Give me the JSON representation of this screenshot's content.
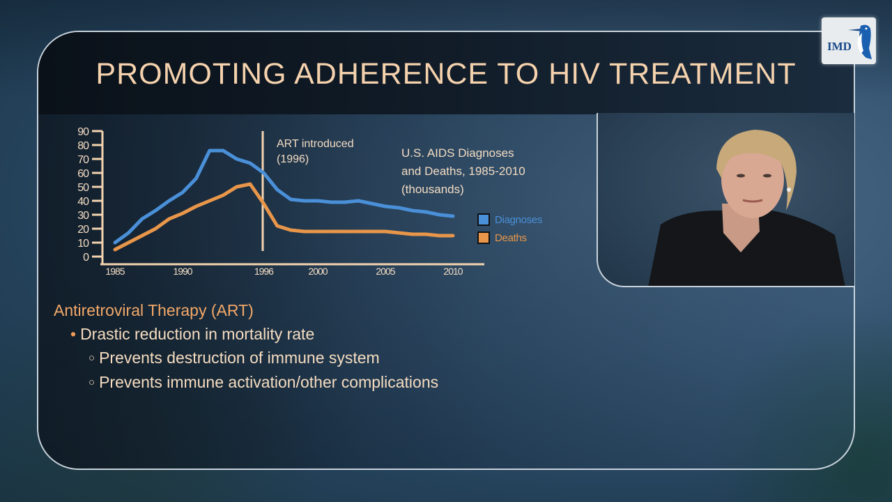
{
  "slide": {
    "title": "PROMOTING ADHERENCE TO HIV TREATMENT",
    "logo_text": "IMD",
    "logo_icon": "kingfisher-bird-icon"
  },
  "chart": {
    "title": "U.S. AIDS Diagnoses\nand Deaths, 1985-2010\n(thousands)",
    "annotation": "ART introduced\n(1996)",
    "legend": [
      {
        "label": "Diagnoses",
        "color": "#4a90d9"
      },
      {
        "label": "Deaths",
        "color": "#e8964a"
      }
    ]
  },
  "bullets": {
    "heading": "Antiretroviral Therapy (ART)",
    "level1": [
      {
        "text": "Drastic reduction in mortality rate"
      }
    ],
    "level2": [
      {
        "text": "Prevents destruction of immune system"
      },
      {
        "text": "Prevents immune activation/other complications"
      }
    ],
    "bullet_color": "#f39a54"
  },
  "video": {
    "description": "Speaker video inset: woman with short blonde hair in dark blazer"
  },
  "chart_data": {
    "type": "line",
    "title": "U.S. AIDS Diagnoses and Deaths, 1985-2010 (thousands)",
    "xlabel": "",
    "ylabel": "",
    "x": [
      1985,
      1986,
      1987,
      1988,
      1989,
      1990,
      1991,
      1992,
      1993,
      1994,
      1995,
      1996,
      1997,
      1998,
      1999,
      2000,
      2001,
      2002,
      2003,
      2004,
      2005,
      2006,
      2007,
      2008,
      2009,
      2010
    ],
    "x_tick_labels": [
      "1985",
      "1990",
      "1996",
      "2000",
      "2005",
      "2010"
    ],
    "y_tick_labels": [
      "0",
      "10",
      "20",
      "30",
      "40",
      "50",
      "60",
      "70",
      "80",
      "90"
    ],
    "ylim": [
      0,
      90
    ],
    "series": [
      {
        "name": "Diagnoses",
        "color": "#4a90d9",
        "values": [
          10,
          17,
          27,
          33,
          40,
          46,
          56,
          76,
          76,
          70,
          67,
          60,
          48,
          41,
          40,
          40,
          39,
          39,
          40,
          38,
          36,
          35,
          33,
          32,
          30,
          29
        ]
      },
      {
        "name": "Deaths",
        "color": "#e8964a",
        "values": [
          5,
          10,
          15,
          20,
          27,
          31,
          36,
          40,
          44,
          50,
          52,
          38,
          22,
          19,
          18,
          18,
          18,
          18,
          18,
          18,
          18,
          17,
          16,
          16,
          15,
          15
        ]
      }
    ],
    "annotations": [
      {
        "x": 1996,
        "type": "vertical-line",
        "text": "ART introduced (1996)"
      }
    ],
    "legend_position": "right",
    "grid": false
  }
}
